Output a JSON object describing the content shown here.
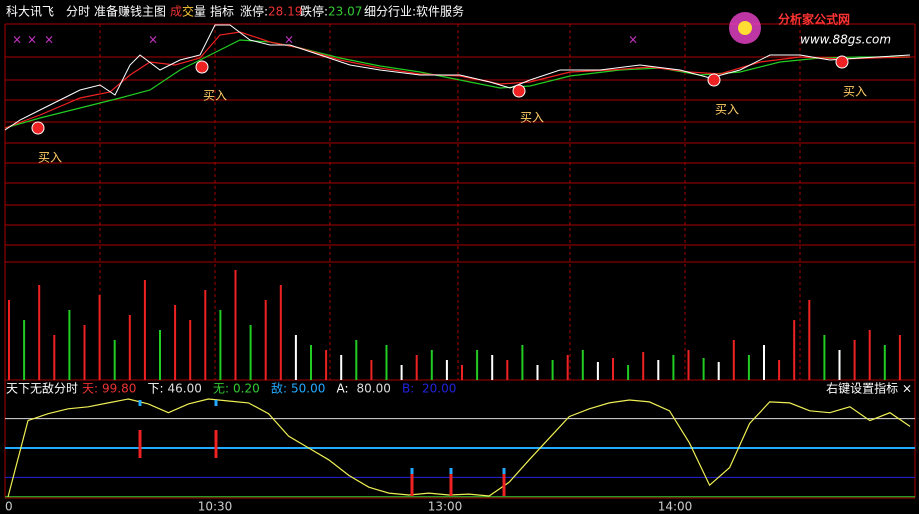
{
  "header": {
    "stock": "科大讯飞",
    "mode": "分时",
    "main_indicator": "准备赚钱主图",
    "volume_cheng": "成",
    "volume_jiao": "交",
    "volume_liang": "量",
    "indicator": "指标",
    "limit_up_label": "涨停:",
    "limit_up": "28.19",
    "limit_down_label": "跌停:",
    "limit_down": "23.07",
    "industry": "细分行业:软件服务"
  },
  "logo": {
    "title": "分析家公式网",
    "url": "www.88gs.com"
  },
  "buy_labels": [
    "买入",
    "买入",
    "买入",
    "买入",
    "买入"
  ],
  "volume": {
    "values": [
      80,
      60,
      95,
      45,
      70,
      55,
      85,
      40,
      65,
      100,
      50,
      75,
      60,
      90,
      70,
      110,
      55,
      80,
      95,
      45,
      35,
      30,
      25,
      40,
      20,
      35,
      15,
      25,
      30,
      20,
      15,
      30,
      25,
      20,
      35,
      15,
      20,
      25,
      30,
      18,
      22,
      15,
      28,
      20,
      25,
      30,
      22,
      18,
      40,
      25,
      35,
      20,
      60,
      80,
      45,
      30,
      40,
      50,
      35,
      45
    ],
    "colors": [
      "#e22",
      "#2c2",
      "#e22",
      "#e22",
      "#2c2",
      "#e22",
      "#e22",
      "#2c2",
      "#e22",
      "#e22",
      "#2c2",
      "#e22",
      "#e22",
      "#e22",
      "#2c2",
      "#e22",
      "#2c2",
      "#e22",
      "#e22",
      "#fff",
      "#2c2",
      "#e22",
      "#fff",
      "#2c2",
      "#e22",
      "#2c2",
      "#fff",
      "#e22",
      "#2c2",
      "#fff",
      "#e22",
      "#2c2",
      "#fff",
      "#e22",
      "#2c2",
      "#fff",
      "#2c2",
      "#e22",
      "#2c2",
      "#fff",
      "#e22",
      "#2c2",
      "#e22",
      "#fff",
      "#2c2",
      "#e22",
      "#2c2",
      "#fff",
      "#e22",
      "#2c2",
      "#fff",
      "#e22",
      "#e22",
      "#e22",
      "#2c2",
      "#fff",
      "#e22",
      "#e22",
      "#2c2",
      "#e22"
    ]
  },
  "indicator": {
    "title": "天下无敌分时",
    "levels": [
      {
        "name": "天:",
        "value": 99.8,
        "label": "99.80",
        "color": "#e33"
      },
      {
        "name": "下:",
        "value": 46,
        "label": "46.00",
        "color": "#ddd"
      },
      {
        "name": "无:",
        "value": 0.2,
        "label": "0.20",
        "color": "#3c3"
      },
      {
        "name": "敌:",
        "value": 50,
        "label": "50.00",
        "color": "#2af"
      },
      {
        "name": "A:",
        "value": 80,
        "label": "80.00",
        "color": "#ddd"
      },
      {
        "name": "B:",
        "value": 20,
        "label": "20.00",
        "color": "#22d"
      }
    ],
    "settings": "右键设置指标 ×",
    "ylim": [
      0,
      100
    ],
    "values": [
      0,
      78,
      85,
      90,
      92,
      96,
      100,
      95,
      86,
      95,
      100,
      98,
      96,
      85,
      62,
      50,
      38,
      22,
      10,
      4,
      2,
      4,
      2,
      3,
      1,
      15,
      38,
      60,
      82,
      90,
      96,
      99,
      97,
      88,
      55,
      12,
      30,
      75,
      97,
      96,
      88,
      86,
      92,
      78,
      86,
      72
    ]
  },
  "time_axis": [
    "0",
    "10:30",
    "13:00",
    "14:00"
  ]
}
